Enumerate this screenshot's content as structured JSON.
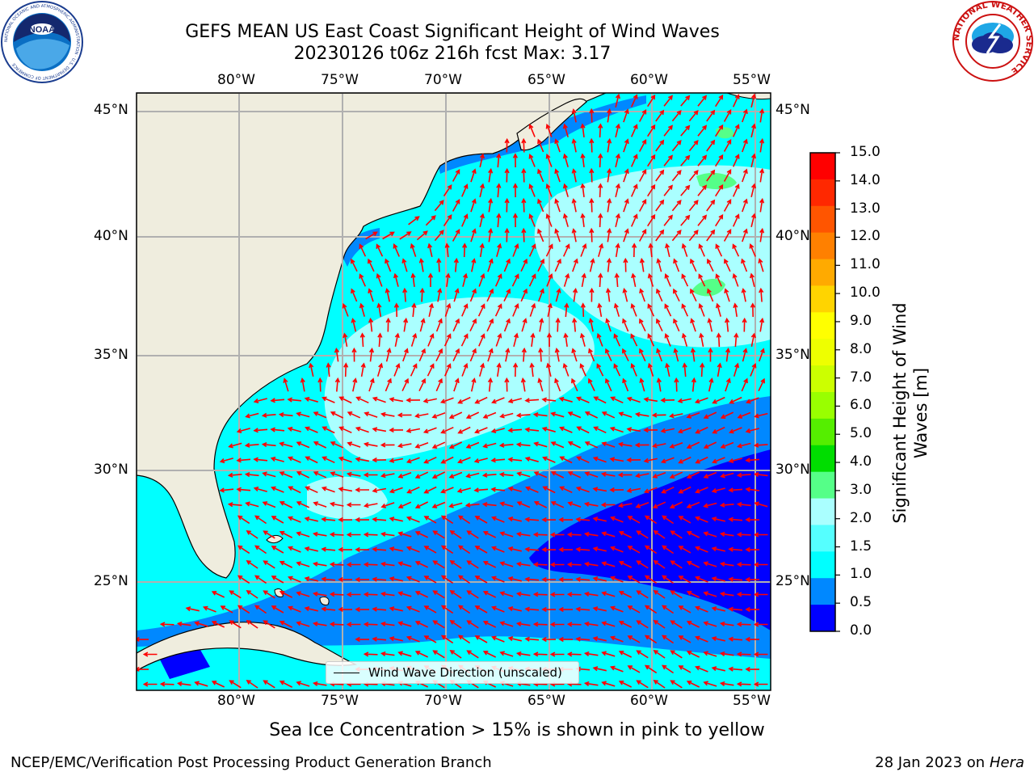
{
  "title": {
    "line1": "GEFS MEAN US East Coast Significant Height of Wind Waves",
    "line2": "20230126 t06z 216h fcst   Max: 3.17"
  },
  "map": {
    "lon_labels": [
      "80°W",
      "75°W",
      "70°W",
      "65°W",
      "60°W",
      "55°W"
    ],
    "lat_labels": [
      "45°N",
      "40°N",
      "35°N",
      "30°N",
      "25°N"
    ],
    "extent": {
      "lon_min": -85,
      "lon_max": -54.5,
      "lat_min": 20.5,
      "lat_max": 46
    },
    "land_color": "#efedde",
    "arrow_color": "#ff0000",
    "gridlines": true
  },
  "legend": {
    "label": "Wind Wave Direction (unscaled)"
  },
  "colorbar": {
    "title_line1": "Significant Height of Wind",
    "title_line2": "Waves [m]",
    "ticks": [
      "15.0",
      "14.0",
      "13.0",
      "12.0",
      "11.0",
      "10.0",
      "9.0",
      "8.0",
      "7.0",
      "6.0",
      "5.0",
      "4.0",
      "3.0",
      "2.0",
      "1.5",
      "1.0",
      "0.5",
      "0.0"
    ],
    "colors_top_to_bottom": [
      "#ff0000",
      "#ff2800",
      "#ff5500",
      "#ff8000",
      "#ffaa00",
      "#ffd400",
      "#ffff00",
      "#eeff00",
      "#ccff00",
      "#99ff00",
      "#55ee00",
      "#00dd00",
      "#55ff88",
      "#aaffff",
      "#55ffff",
      "#00ffff",
      "#0088ff",
      "#0000ff"
    ]
  },
  "chart_data": {
    "type": "heatmap",
    "title": "GEFS MEAN US East Coast Significant Height of Wind Waves",
    "subtitle": "20230126 t06z 216h fcst   Max: 3.17",
    "variable": "Significant Height of Wind Waves [m]",
    "max_value": 3.17,
    "value_range": [
      0.0,
      15.0
    ],
    "colorbar_levels": [
      0.0,
      0.5,
      1.0,
      1.5,
      2.0,
      3.0,
      4.0,
      5.0,
      6.0,
      7.0,
      8.0,
      9.0,
      10.0,
      11.0,
      12.0,
      13.0,
      14.0,
      15.0
    ],
    "xlim": [
      -85,
      -54.5
    ],
    "ylim": [
      20.5,
      46
    ],
    "xticks": [
      "80°W",
      "75°W",
      "70°W",
      "65°W",
      "60°W",
      "55°W"
    ],
    "yticks": [
      "45°N",
      "40°N",
      "35°N",
      "30°N",
      "25°N"
    ],
    "legend_entries": [
      "Wind Wave Direction (unscaled)"
    ]
  },
  "footer": {
    "note": "Sea Ice Concentration > 15% is shown in pink to yellow",
    "left": "NCEP/EMC/Verification Post Processing Product Generation Branch",
    "right_date": "28 Jan 2023 on",
    "right_host": "Hera"
  },
  "logos": {
    "noaa_text": "NOAA",
    "noaa_ring": "NATIONAL OCEANIC AND ATMOSPHERIC ADMINISTRATION · U.S. DEPARTMENT OF COMMERCE",
    "nws_ring": "NATIONAL WEATHER SERVICE"
  }
}
